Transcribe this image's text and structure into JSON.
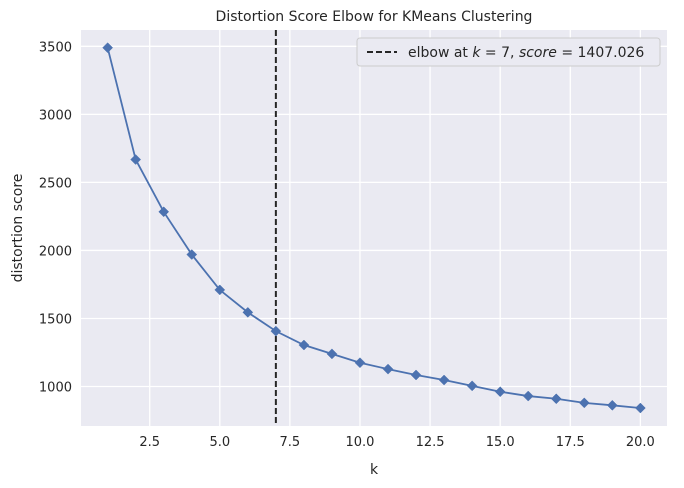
{
  "chart_data": {
    "type": "line",
    "title": "Distortion Score Elbow for KMeans Clustering",
    "xlabel": "k",
    "ylabel": "distortion score",
    "x": [
      1,
      2,
      3,
      4,
      5,
      6,
      7,
      8,
      9,
      10,
      11,
      12,
      13,
      14,
      15,
      16,
      17,
      18,
      19,
      20
    ],
    "series": [
      {
        "values": [
          3490,
          2668,
          2284,
          1970,
          1710,
          1545,
          1407.026,
          1305,
          1240,
          1175,
          1128,
          1085,
          1048,
          1005,
          962,
          930,
          910,
          880,
          862,
          842
        ],
        "color": "#4c72b0",
        "marker": "diamond"
      }
    ],
    "xlim": [
      0.05,
      20.95
    ],
    "ylim": [
      710,
      3620
    ],
    "xticks": [
      2.5,
      5.0,
      7.5,
      10.0,
      12.5,
      15.0,
      17.5,
      20.0
    ],
    "xtick_labels": [
      "2.5",
      "5.0",
      "7.5",
      "10.0",
      "12.5",
      "15.0",
      "17.5",
      "20.0"
    ],
    "yticks": [
      1000,
      1500,
      2000,
      2500,
      3000,
      3500
    ],
    "ytick_labels": [
      "1000",
      "1500",
      "2000",
      "2500",
      "3000",
      "3500"
    ],
    "grid": true,
    "background": "#eaeaf2",
    "grid_color": "#ffffff",
    "elbow": {
      "k": 7,
      "score": 1407.026,
      "line_color": "#262626",
      "line_style": "dashed"
    },
    "legend": {
      "placement": "top-right",
      "prefix": "elbow at ",
      "k_symbol": "k",
      "k_text": " = 7, ",
      "score_symbol": "score",
      "score_text": " = 1407.026"
    }
  }
}
